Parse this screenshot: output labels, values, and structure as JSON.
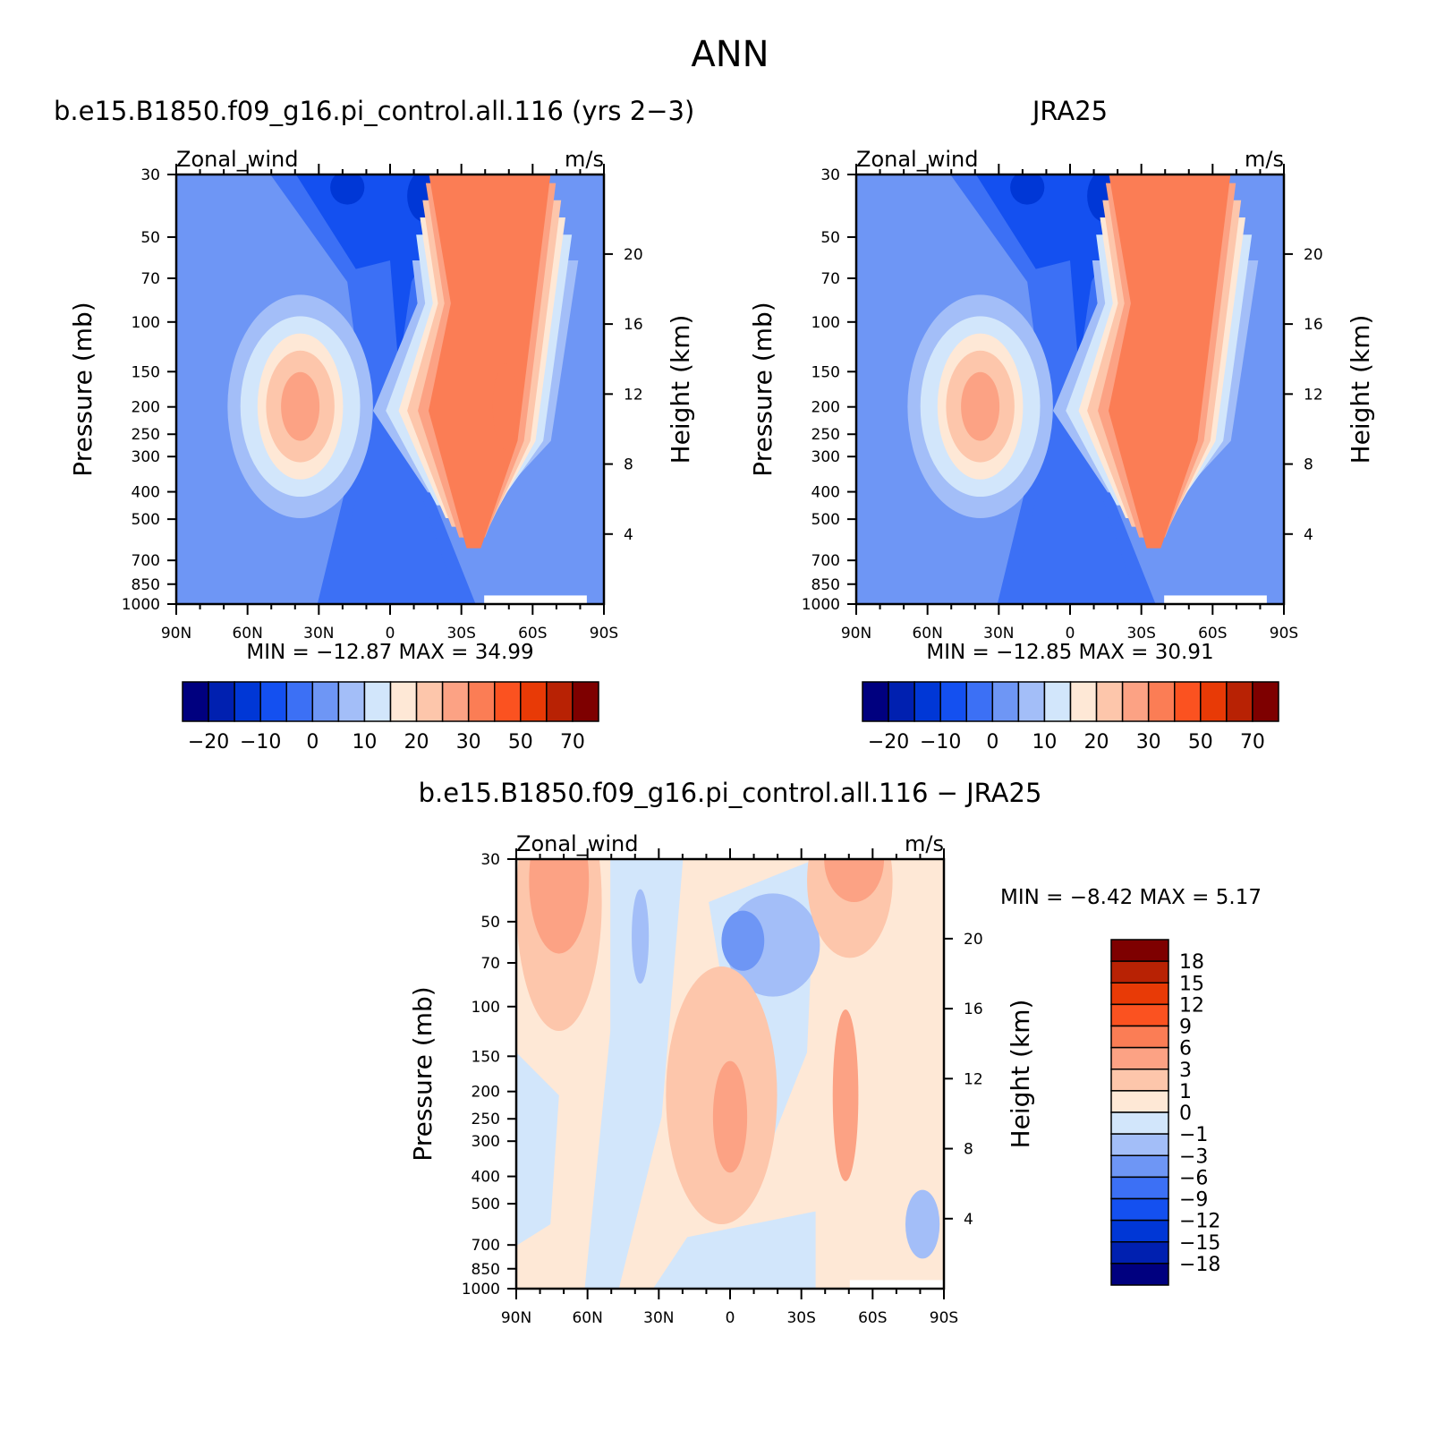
{
  "figure_title": "ANN",
  "colors": {
    "abs_scale": [
      "#00007f",
      "#0020b0",
      "#0037d6",
      "#1450f0",
      "#3c70f5",
      "#6e96f5",
      "#a3bef8",
      "#d2e6fb",
      "#fee8d6",
      "#fdc6ab",
      "#fca284",
      "#fb7d55",
      "#fb5220",
      "#e83a06",
      "#b82204",
      "#7e0000"
    ],
    "diff_scale": [
      "#00007f",
      "#0020b0",
      "#0037d6",
      "#1450f0",
      "#3c70f5",
      "#6e96f5",
      "#a3bef8",
      "#d2e6fb",
      "#fee8d6",
      "#fdc6ab",
      "#fca284",
      "#fb7d55",
      "#fb5220",
      "#e83a06",
      "#b82204",
      "#7e0000"
    ]
  },
  "panels": [
    {
      "title": "b.e15.B1850.f09_g16.pi_control.all.116 (yrs 2−3)",
      "left_label": "Zonal_wind",
      "right_label": "m/s",
      "stats": {
        "min_label": "MIN =",
        "min": "−12.87",
        "max_label": "MAX =",
        "max": "34.99"
      }
    },
    {
      "title": "JRA25",
      "left_label": "Zonal_wind",
      "right_label": "m/s",
      "stats": {
        "min_label": "MIN =",
        "min": "−12.85",
        "max_label": "MAX =",
        "max": "30.91"
      }
    },
    {
      "title": "b.e15.B1850.f09_g16.pi_control.all.116 − JRA25",
      "left_label": "Zonal_wind",
      "right_label": "m/s",
      "stats": {
        "min_label": "MIN =",
        "min": "−8.42",
        "max_label": "MAX =",
        "max": "5.17"
      }
    }
  ],
  "chart_data": [
    {
      "type": "heatmap",
      "title": "b.e15.B1850.f09_g16.pi_control.all.116 (yrs 2−3)",
      "xlabel": "",
      "ylabel": "Pressure (mb)",
      "y2label": "Height (km)",
      "x_ticks": [
        "90N",
        "60N",
        "30N",
        "0",
        "30S",
        "60S",
        "90S"
      ],
      "y_ticks": [
        30,
        50,
        70,
        100,
        150,
        200,
        250,
        300,
        400,
        500,
        700,
        850,
        1000
      ],
      "y2_ticks": [
        20,
        16,
        12,
        8,
        4
      ],
      "y_scale": "log",
      "colorbar_labels": [
        "−20",
        "−10",
        "0",
        "10",
        "20",
        "30",
        "50",
        "70"
      ],
      "min": -12.87,
      "max": 34.99
    },
    {
      "type": "heatmap",
      "title": "JRA25",
      "xlabel": "",
      "ylabel": "Pressure (mb)",
      "y2label": "Height (km)",
      "x_ticks": [
        "90N",
        "60N",
        "30N",
        "0",
        "30S",
        "60S",
        "90S"
      ],
      "y_ticks": [
        30,
        50,
        70,
        100,
        150,
        200,
        250,
        300,
        400,
        500,
        700,
        850,
        1000
      ],
      "y2_ticks": [
        20,
        16,
        12,
        8,
        4
      ],
      "y_scale": "log",
      "colorbar_labels": [
        "−20",
        "−10",
        "0",
        "10",
        "20",
        "30",
        "50",
        "70"
      ],
      "min": -12.85,
      "max": 30.91
    },
    {
      "type": "heatmap",
      "title": "b.e15.B1850.f09_g16.pi_control.all.116 − JRA25",
      "xlabel": "",
      "ylabel": "Pressure (mb)",
      "y2label": "Height (km)",
      "x_ticks": [
        "90N",
        "60N",
        "30N",
        "0",
        "30S",
        "60S",
        "90S"
      ],
      "y_ticks": [
        30,
        50,
        70,
        100,
        150,
        200,
        250,
        300,
        400,
        500,
        700,
        850,
        1000
      ],
      "y2_ticks": [
        20,
        16,
        12,
        8,
        4
      ],
      "y_scale": "log",
      "colorbar_labels": [
        "18",
        "15",
        "12",
        "9",
        "6",
        "3",
        "1",
        "0",
        "−1",
        "−3",
        "−6",
        "−9",
        "−12",
        "−15",
        "−18"
      ],
      "min": -8.42,
      "max": 5.17
    }
  ]
}
